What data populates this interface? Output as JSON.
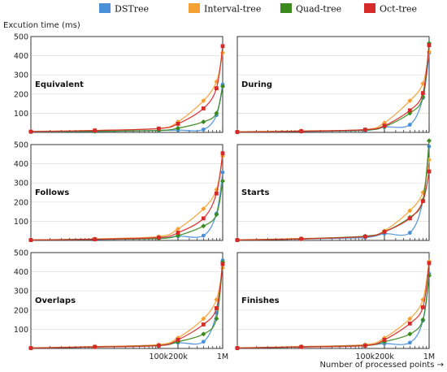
{
  "legend": [
    {
      "name": "DSTree",
      "color": "#4a90d9"
    },
    {
      "name": "Interval-tree",
      "color": "#f5a033"
    },
    {
      "name": "Quad-tree",
      "color": "#3a8a1e"
    },
    {
      "name": "Oct-tree",
      "color": "#d62a2a"
    }
  ],
  "ylabel": "Excution time (ms)",
  "xlabel": "Number of processed points →",
  "chart_data": [
    {
      "type": "line",
      "title": "Equivalent",
      "x": [
        1,
        10,
        100,
        200,
        500,
        800,
        1000
      ],
      "xlim": [
        1,
        1000
      ],
      "ylim": [
        0,
        500
      ],
      "xscale": "log",
      "xticks": [
        {
          "value": 100,
          "label": "100k"
        },
        {
          "value": 200,
          "label": "200k"
        },
        {
          "value": 1000,
          "label": "1M"
        }
      ],
      "yticks": [
        100,
        200,
        300,
        400,
        500
      ],
      "series": [
        {
          "name": "DSTree",
          "values": [
            2,
            5,
            10,
            12,
            15,
            90,
            250
          ]
        },
        {
          "name": "Interval-tree",
          "values": [
            5,
            10,
            20,
            55,
            165,
            265,
            415
          ]
        },
        {
          "name": "Quad-tree",
          "values": [
            4,
            6,
            10,
            22,
            55,
            100,
            240
          ]
        },
        {
          "name": "Oct-tree",
          "values": [
            4,
            10,
            20,
            45,
            125,
            230,
            450
          ]
        }
      ]
    },
    {
      "type": "line",
      "title": "During",
      "x": [
        1,
        10,
        100,
        200,
        500,
        800,
        1000
      ],
      "xlim": [
        1,
        1000
      ],
      "ylim": [
        0,
        500
      ],
      "xscale": "log",
      "xticks": [
        {
          "value": 100,
          "label": "100k"
        },
        {
          "value": 200,
          "label": "200k"
        },
        {
          "value": 1000,
          "label": "1M"
        }
      ],
      "yticks": [
        100,
        200,
        300,
        400,
        500
      ],
      "series": [
        {
          "name": "DSTree",
          "values": [
            2,
            5,
            10,
            28,
            40,
            180,
            415
          ]
        },
        {
          "name": "Interval-tree",
          "values": [
            3,
            8,
            15,
            50,
            165,
            255,
            420
          ]
        },
        {
          "name": "Quad-tree",
          "values": [
            2,
            6,
            12,
            30,
            100,
            185,
            465
          ]
        },
        {
          "name": "Oct-tree",
          "values": [
            2,
            6,
            14,
            35,
            115,
            205,
            455
          ]
        }
      ]
    },
    {
      "type": "line",
      "title": "Follows",
      "x": [
        1,
        10,
        100,
        200,
        500,
        800,
        1000
      ],
      "xlim": [
        1,
        1000
      ],
      "ylim": [
        0,
        500
      ],
      "xscale": "log",
      "xticks": [
        {
          "value": 100,
          "label": "100k"
        },
        {
          "value": 200,
          "label": "200k"
        },
        {
          "value": 1000,
          "label": "1M"
        }
      ],
      "yticks": [
        100,
        200,
        300,
        400,
        500
      ],
      "series": [
        {
          "name": "DSTree",
          "values": [
            2,
            5,
            10,
            22,
            25,
            140,
            355
          ]
        },
        {
          "name": "Interval-tree",
          "values": [
            3,
            8,
            20,
            60,
            165,
            265,
            440
          ]
        },
        {
          "name": "Quad-tree",
          "values": [
            2,
            6,
            10,
            25,
            75,
            135,
            310
          ]
        },
        {
          "name": "Oct-tree",
          "values": [
            2,
            6,
            15,
            40,
            115,
            245,
            455
          ]
        }
      ]
    },
    {
      "type": "line",
      "title": "Starts",
      "x": [
        1,
        10,
        100,
        200,
        500,
        800,
        1000
      ],
      "xlim": [
        1,
        1000
      ],
      "ylim": [
        0,
        500
      ],
      "xscale": "log",
      "xticks": [
        {
          "value": 100,
          "label": "100k"
        },
        {
          "value": 200,
          "label": "200k"
        },
        {
          "value": 1000,
          "label": "1M"
        }
      ],
      "yticks": [
        100,
        200,
        300,
        400,
        500
      ],
      "series": [
        {
          "name": "DSTree",
          "values": [
            2,
            8,
            15,
            35,
            40,
            205,
            490
          ]
        },
        {
          "name": "Interval-tree",
          "values": [
            3,
            10,
            20,
            50,
            155,
            250,
            420
          ]
        },
        {
          "name": "Quad-tree",
          "values": [
            2,
            8,
            22,
            45,
            120,
            210,
            520
          ]
        },
        {
          "name": "Oct-tree",
          "values": [
            2,
            8,
            20,
            45,
            115,
            205,
            360
          ]
        }
      ]
    },
    {
      "type": "line",
      "title": "Overlaps",
      "x": [
        1,
        10,
        100,
        200,
        500,
        800,
        1000
      ],
      "xlim": [
        1,
        1000
      ],
      "ylim": [
        0,
        500
      ],
      "xscale": "log",
      "xticks": [
        {
          "value": 100,
          "label": "100k"
        },
        {
          "value": 200,
          "label": "200k"
        },
        {
          "value": 1000,
          "label": "1M"
        }
      ],
      "yticks": [
        100,
        200,
        300,
        400,
        500
      ],
      "series": [
        {
          "name": "DSTree",
          "values": [
            2,
            8,
            18,
            30,
            35,
            185,
            460
          ]
        },
        {
          "name": "Interval-tree",
          "values": [
            3,
            10,
            20,
            55,
            155,
            255,
            420
          ]
        },
        {
          "name": "Quad-tree",
          "values": [
            2,
            8,
            15,
            35,
            75,
            155,
            450
          ]
        },
        {
          "name": "Oct-tree",
          "values": [
            2,
            8,
            15,
            45,
            125,
            210,
            440
          ]
        }
      ]
    },
    {
      "type": "line",
      "title": "Finishes",
      "x": [
        1,
        10,
        100,
        200,
        500,
        800,
        1000
      ],
      "xlim": [
        1,
        1000
      ],
      "ylim": [
        0,
        500
      ],
      "xscale": "log",
      "xticks": [
        {
          "value": 100,
          "label": "100k"
        },
        {
          "value": 200,
          "label": "200k"
        },
        {
          "value": 1000,
          "label": "1M"
        }
      ],
      "yticks": [
        100,
        200,
        300,
        400,
        500
      ],
      "series": [
        {
          "name": "DSTree",
          "values": [
            2,
            8,
            18,
            25,
            30,
            145,
            390
          ]
        },
        {
          "name": "Interval-tree",
          "values": [
            3,
            10,
            20,
            55,
            155,
            255,
            455
          ]
        },
        {
          "name": "Quad-tree",
          "values": [
            2,
            8,
            15,
            35,
            75,
            150,
            380
          ]
        },
        {
          "name": "Oct-tree",
          "values": [
            2,
            8,
            15,
            45,
            130,
            215,
            445
          ]
        }
      ]
    }
  ]
}
